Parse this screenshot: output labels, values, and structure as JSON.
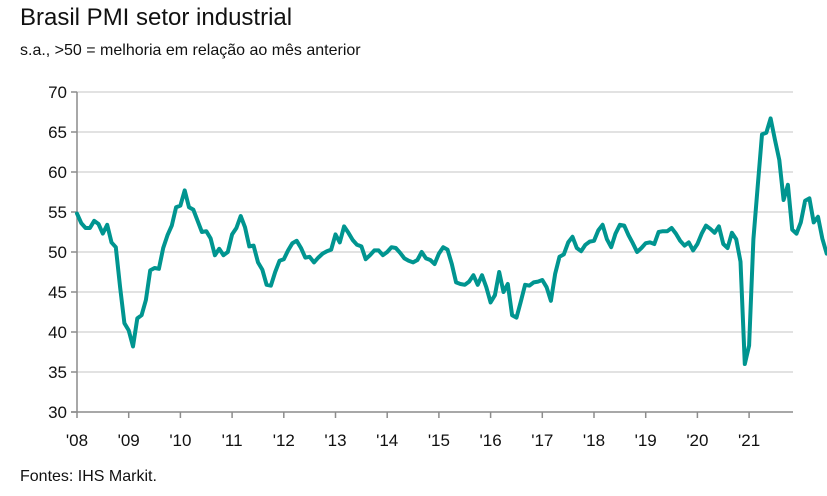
{
  "chart_data": {
    "type": "line",
    "title": "Brasil PMI setor industrial",
    "subtitle": "s.a., >50 = melhoria em relação ao mês anterior",
    "source": "Fontes: IHS Markit.",
    "xlabel": "",
    "ylabel": "",
    "ylim": [
      30,
      70
    ],
    "yticks": [
      30,
      35,
      40,
      45,
      50,
      55,
      60,
      65,
      70
    ],
    "xlim": [
      2008.0,
      2021.92
    ],
    "xticks": [
      {
        "value": 2008,
        "label": "'08"
      },
      {
        "value": 2009,
        "label": "'09"
      },
      {
        "value": 2010,
        "label": "'10"
      },
      {
        "value": 2011,
        "label": "'11"
      },
      {
        "value": 2012,
        "label": "'12"
      },
      {
        "value": 2013,
        "label": "'13"
      },
      {
        "value": 2014,
        "label": "'14"
      },
      {
        "value": 2015,
        "label": "'15"
      },
      {
        "value": 2016,
        "label": "'16"
      },
      {
        "value": 2017,
        "label": "'17"
      },
      {
        "value": 2018,
        "label": "'18"
      },
      {
        "value": 2019,
        "label": "'19"
      },
      {
        "value": 2020,
        "label": "'20"
      },
      {
        "value": 2021,
        "label": "'21"
      }
    ],
    "grid": true,
    "line_color": "#009590",
    "series": [
      {
        "name": "Brasil PMI setor industrial",
        "start": "2008-01",
        "frequency": "monthly",
        "values": [
          54.8,
          53.6,
          53.0,
          53.0,
          53.9,
          53.5,
          52.3,
          53.4,
          51.2,
          50.6,
          45.6,
          41.1,
          40.2,
          38.2,
          41.7,
          42.1,
          44.0,
          47.7,
          48.0,
          47.9,
          50.5,
          52.1,
          53.3,
          55.6,
          55.8,
          57.7,
          55.6,
          55.3,
          53.9,
          52.5,
          52.6,
          51.7,
          49.6,
          50.4,
          49.6,
          50.0,
          52.2,
          53.0,
          54.5,
          53.1,
          50.7,
          50.8,
          48.7,
          47.8,
          45.9,
          45.8,
          47.5,
          48.9,
          49.1,
          50.2,
          51.1,
          51.4,
          50.5,
          49.3,
          49.4,
          48.7,
          49.3,
          49.8,
          50.1,
          50.3,
          52.2,
          51.2,
          53.2,
          52.4,
          51.5,
          50.9,
          50.7,
          49.1,
          49.6,
          50.2,
          50.2,
          49.6,
          50.0,
          50.6,
          50.5,
          49.9,
          49.2,
          48.9,
          48.7,
          49.0,
          50.0,
          49.2,
          49.0,
          48.5,
          49.8,
          50.6,
          50.3,
          48.5,
          46.2,
          46.0,
          45.9,
          46.3,
          47.1,
          45.9,
          47.1,
          45.6,
          43.7,
          44.6,
          47.5,
          45.0,
          46.0,
          42.1,
          41.8,
          43.8,
          45.9,
          45.8,
          46.2,
          46.3,
          46.5,
          45.6,
          43.9,
          47.3,
          49.4,
          49.7,
          51.2,
          51.9,
          50.5,
          50.1,
          50.9,
          51.3,
          51.4,
          52.7,
          53.4,
          51.6,
          50.6,
          52.3,
          53.4,
          53.3,
          52.1,
          51.1,
          50.0,
          50.5,
          51.1,
          51.2,
          51.0,
          52.5,
          52.6,
          52.6,
          53.0,
          52.3,
          51.4,
          50.8,
          51.2,
          50.2,
          51.0,
          52.3,
          53.3,
          52.9,
          52.4,
          53.2,
          51.0,
          50.5,
          52.4,
          51.6,
          48.8,
          36.0,
          38.3,
          51.6,
          58.2,
          64.7,
          64.9,
          66.7,
          64.0,
          61.5,
          56.5,
          58.4,
          52.8,
          52.3,
          53.7,
          56.4,
          56.7,
          53.7,
          54.4,
          51.7,
          49.8
        ]
      }
    ]
  }
}
